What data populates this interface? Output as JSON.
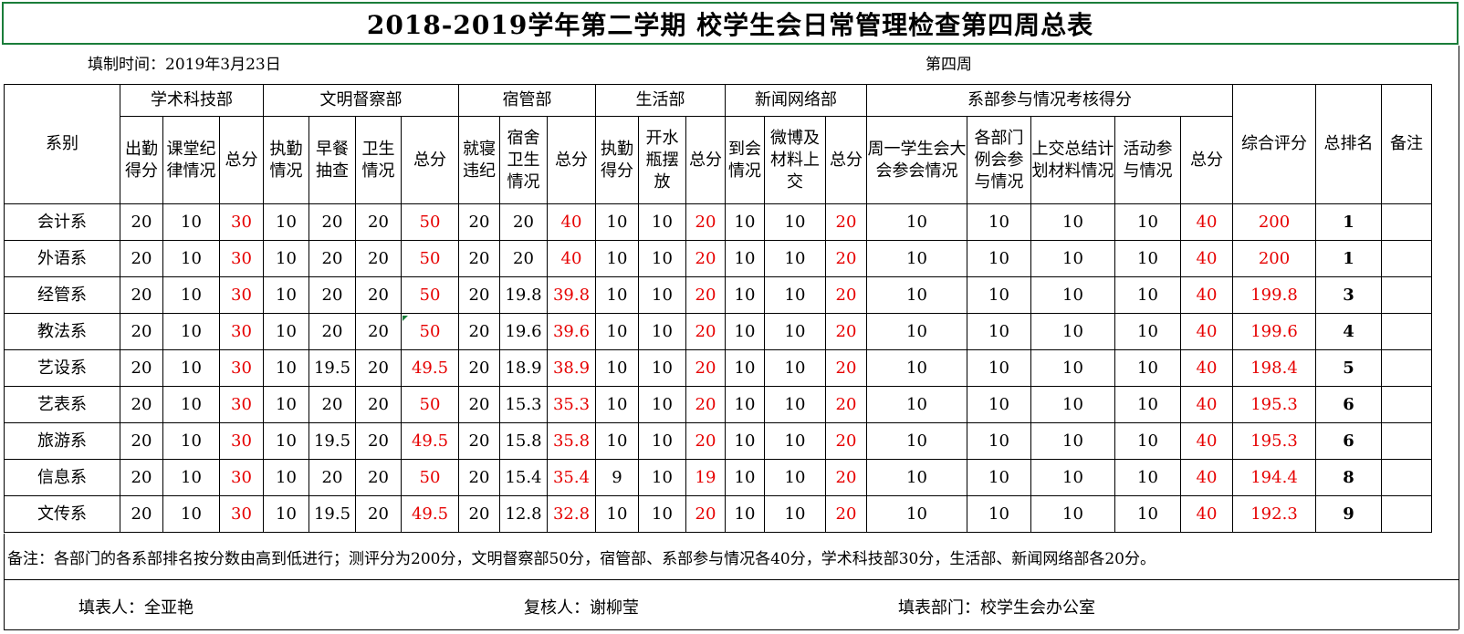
{
  "title": "2018-2019学年第二学期 校学生会日常管理检查第四周总表",
  "fill_time": "填制时间：2019年3月23日",
  "week": "第四周",
  "headers": {
    "dept_col": "系别",
    "groups": [
      "学术科技部",
      "文明督察部",
      "宿管部",
      "生活部",
      "新闻网络部",
      "系部参与情况考核得分"
    ],
    "composite": "综合评分",
    "rank": "总排名",
    "remark": "备注",
    "sub": [
      "出勤得分",
      "课堂纪律情况",
      "总分",
      "执勤情况",
      "早餐抽查",
      "卫生情况",
      "总分",
      "就寝违纪",
      "宿舍卫生情况",
      "总分",
      "执勤得分",
      "开水瓶摆放",
      "总分",
      "到会情况",
      "微博及材料上交",
      "总分",
      "周一学生会大会参会情况",
      "各部门例会参与情况",
      "上交总结计划材料情况",
      "活动参与情况",
      "总分"
    ]
  },
  "rows": [
    {
      "dept": "会计系",
      "v": [
        "20",
        "10",
        "30",
        "10",
        "20",
        "20",
        "50",
        "20",
        "20",
        "40",
        "10",
        "10",
        "20",
        "10",
        "10",
        "20",
        "10",
        "10",
        "10",
        "10",
        "40"
      ],
      "composite": "200",
      "rank": "1"
    },
    {
      "dept": "外语系",
      "v": [
        "20",
        "10",
        "30",
        "10",
        "20",
        "20",
        "50",
        "20",
        "20",
        "40",
        "10",
        "10",
        "20",
        "10",
        "10",
        "20",
        "10",
        "10",
        "10",
        "10",
        "40"
      ],
      "composite": "200",
      "rank": "1"
    },
    {
      "dept": "经管系",
      "v": [
        "20",
        "10",
        "30",
        "10",
        "20",
        "20",
        "50",
        "20",
        "19.8",
        "39.8",
        "10",
        "10",
        "20",
        "10",
        "10",
        "20",
        "10",
        "10",
        "10",
        "10",
        "40"
      ],
      "composite": "199.8",
      "rank": "3"
    },
    {
      "dept": "教法系",
      "v": [
        "20",
        "10",
        "30",
        "10",
        "20",
        "20",
        "50",
        "20",
        "19.6",
        "39.6",
        "10",
        "10",
        "20",
        "10",
        "10",
        "20",
        "10",
        "10",
        "10",
        "10",
        "40"
      ],
      "composite": "199.6",
      "rank": "4"
    },
    {
      "dept": "艺设系",
      "v": [
        "20",
        "10",
        "30",
        "10",
        "19.5",
        "20",
        "49.5",
        "20",
        "18.9",
        "38.9",
        "10",
        "10",
        "20",
        "10",
        "10",
        "20",
        "10",
        "10",
        "10",
        "10",
        "40"
      ],
      "composite": "198.4",
      "rank": "5"
    },
    {
      "dept": "艺表系",
      "v": [
        "20",
        "10",
        "30",
        "10",
        "20",
        "20",
        "50",
        "20",
        "15.3",
        "35.3",
        "10",
        "10",
        "20",
        "10",
        "10",
        "20",
        "10",
        "10",
        "10",
        "10",
        "40"
      ],
      "composite": "195.3",
      "rank": "6"
    },
    {
      "dept": "旅游系",
      "v": [
        "20",
        "10",
        "30",
        "10",
        "19.5",
        "20",
        "49.5",
        "20",
        "15.8",
        "35.8",
        "10",
        "10",
        "20",
        "10",
        "10",
        "20",
        "10",
        "10",
        "10",
        "10",
        "40"
      ],
      "composite": "195.3",
      "rank": "6"
    },
    {
      "dept": "信息系",
      "v": [
        "20",
        "10",
        "30",
        "10",
        "20",
        "20",
        "50",
        "20",
        "15.4",
        "35.4",
        "9",
        "10",
        "19",
        "10",
        "10",
        "20",
        "10",
        "10",
        "10",
        "10",
        "40"
      ],
      "composite": "194.4",
      "rank": "8"
    },
    {
      "dept": "文传系",
      "v": [
        "20",
        "10",
        "30",
        "10",
        "19.5",
        "20",
        "49.5",
        "20",
        "12.8",
        "32.8",
        "10",
        "10",
        "20",
        "10",
        "10",
        "20",
        "10",
        "10",
        "10",
        "10",
        "40"
      ],
      "composite": "192.3",
      "rank": "9"
    }
  ],
  "note": "备注：各部门的各系部排名按分数由高到低进行；测评分为200分，文明督察部50分，宿管部、系部参与情况各40分，学术科技部30分，生活部、新闻网络部各20分。",
  "filler": "填表人：全亚艳",
  "reviewer": "复核人：谢柳莹",
  "filling_dept": "填表部门：校学生会办公室",
  "colors": {
    "score_total": "#e60000",
    "title_border": "#1a7d3a"
  }
}
